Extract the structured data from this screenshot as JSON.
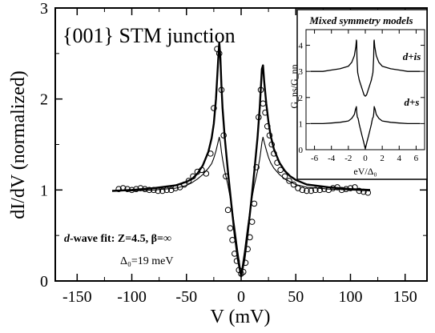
{
  "chart_data": [
    {
      "type": "line",
      "title": "{001} STM junction",
      "xlabel": "V (mV)",
      "ylabel": "dI/dV (normalized)",
      "xlim": [
        -170,
        170
      ],
      "ylim": [
        0,
        3
      ],
      "xticks": [
        -150,
        -100,
        -50,
        0,
        50,
        100,
        150
      ],
      "yticks": [
        0,
        1,
        2,
        3
      ],
      "grid": false,
      "annotation": {
        "fit_prefix": "d",
        "fit_suffix": "-wave fit: Z=4.5, β=∞",
        "gap": "Δ₀=19 meV"
      },
      "series": [
        {
          "style": "markers",
          "x": [
            -112,
            -108,
            -104,
            -100,
            -96,
            -92,
            -88,
            -84,
            -80,
            -76,
            -72,
            -68,
            -64,
            -60,
            -56,
            -52,
            -48,
            -44,
            -40,
            -36,
            -32,
            -28,
            -25,
            -22,
            -20,
            -18,
            -16,
            -14,
            -12,
            -10,
            -8,
            -6,
            -4,
            -2,
            0,
            2,
            4,
            6,
            8,
            10,
            12,
            14,
            16,
            18,
            20,
            22,
            24,
            26,
            28,
            30,
            33,
            36,
            40,
            44,
            48,
            52,
            56,
            60,
            64,
            68,
            72,
            76,
            80,
            84,
            88,
            92,
            96,
            100,
            104,
            108,
            112,
            116
          ],
          "y": [
            1.01,
            1.02,
            1.01,
            1.0,
            1.01,
            1.02,
            1.01,
            1.0,
            1.0,
            0.99,
            0.99,
            1.0,
            1.0,
            1.02,
            1.03,
            1.06,
            1.1,
            1.15,
            1.2,
            1.22,
            1.18,
            1.4,
            1.9,
            2.55,
            2.5,
            2.1,
            1.6,
            1.15,
            0.78,
            0.58,
            0.45,
            0.3,
            0.22,
            0.12,
            0.08,
            0.1,
            0.2,
            0.35,
            0.48,
            0.65,
            0.85,
            1.25,
            1.8,
            2.1,
            1.95,
            1.85,
            1.7,
            1.6,
            1.5,
            1.4,
            1.3,
            1.22,
            1.15,
            1.1,
            1.06,
            1.02,
            1.0,
            0.99,
            0.99,
            1.0,
            1.0,
            1.01,
            1.0,
            1.02,
            1.03,
            1.0,
            1.01,
            1.02,
            1.03,
            0.99,
            0.98,
            0.97
          ]
        },
        {
          "style": "thick",
          "x": [
            -118,
            -100,
            -80,
            -60,
            -50,
            -45,
            -40,
            -35,
            -30,
            -27,
            -25,
            -23,
            -21,
            -20,
            -19,
            -18,
            -17,
            -15,
            -12,
            -9,
            -6,
            -3,
            0,
            3,
            6,
            9,
            12,
            15,
            17,
            18,
            19,
            20,
            21,
            23,
            25,
            27,
            30,
            35,
            40,
            45,
            50,
            60,
            80,
            100,
            118
          ],
          "y": [
            0.99,
            1.0,
            1.02,
            1.05,
            1.09,
            1.12,
            1.18,
            1.27,
            1.42,
            1.57,
            1.73,
            2.0,
            2.42,
            2.62,
            2.45,
            2.15,
            1.9,
            1.58,
            1.2,
            0.85,
            0.52,
            0.24,
            0.05,
            0.24,
            0.52,
            0.85,
            1.2,
            1.58,
            1.9,
            2.12,
            2.33,
            2.37,
            2.2,
            1.95,
            1.75,
            1.6,
            1.45,
            1.3,
            1.21,
            1.15,
            1.11,
            1.06,
            1.03,
            1.01,
            1.0
          ]
        },
        {
          "style": "thin",
          "x": [
            -118,
            -100,
            -80,
            -60,
            -50,
            -45,
            -40,
            -35,
            -30,
            -27,
            -25,
            -23,
            -21,
            -20,
            -19,
            -18,
            -17,
            -15,
            -12,
            -9,
            -6,
            -3,
            0,
            3,
            6,
            9,
            12,
            15,
            17,
            18,
            19,
            20,
            21,
            23,
            25,
            27,
            30,
            35,
            40,
            45,
            50,
            60,
            80,
            100,
            118
          ],
          "y": [
            0.99,
            0.99,
            1.0,
            1.02,
            1.05,
            1.08,
            1.12,
            1.17,
            1.24,
            1.29,
            1.35,
            1.43,
            1.53,
            1.58,
            1.52,
            1.42,
            1.34,
            1.21,
            1.05,
            0.85,
            0.6,
            0.32,
            0.08,
            0.32,
            0.6,
            0.85,
            1.05,
            1.21,
            1.34,
            1.43,
            1.52,
            1.58,
            1.53,
            1.44,
            1.36,
            1.3,
            1.24,
            1.17,
            1.12,
            1.09,
            1.06,
            1.03,
            1.01,
            1.0,
            0.99
          ]
        }
      ]
    },
    {
      "type": "line",
      "title": "Mixed symmetry models",
      "xlabel": "eV/Δ₀",
      "ylabel": "G_ns/G_nn",
      "xlim": [
        -7,
        7
      ],
      "ylim": [
        0,
        4.6
      ],
      "xticks": [
        -6,
        -4,
        -2,
        0,
        2,
        4,
        6
      ],
      "yticks": [
        0,
        1,
        2,
        3,
        4
      ],
      "series": [
        {
          "name": "d+is",
          "x": [
            -6.5,
            -5,
            -4,
            -3,
            -2,
            -1.6,
            -1.3,
            -1.12,
            -1.05,
            -1.02,
            -0.98,
            -0.9,
            -0.7,
            -0.5,
            -0.3,
            -0.15,
            0,
            0.15,
            0.3,
            0.5,
            0.7,
            0.9,
            0.98,
            1.02,
            1.05,
            1.12,
            1.3,
            1.6,
            2,
            3,
            4,
            5,
            6.5
          ],
          "y": [
            3.0,
            3.0,
            3.05,
            3.1,
            3.2,
            3.35,
            3.6,
            3.95,
            4.2,
            4.15,
            3.5,
            2.95,
            2.65,
            2.45,
            2.25,
            2.1,
            2.05,
            2.1,
            2.25,
            2.45,
            2.65,
            2.95,
            3.5,
            4.15,
            4.2,
            3.95,
            3.6,
            3.35,
            3.2,
            3.1,
            3.05,
            3.0,
            3.0
          ]
        },
        {
          "name": "d+s",
          "x": [
            -6.5,
            -5,
            -4,
            -3,
            -2,
            -1.6,
            -1.3,
            -1.15,
            -1.05,
            -1.0,
            -0.95,
            -0.85,
            -0.7,
            -0.55,
            -0.4,
            -0.2,
            0,
            0.2,
            0.4,
            0.55,
            0.7,
            0.85,
            0.95,
            1.0,
            1.05,
            1.15,
            1.3,
            1.6,
            2,
            3,
            4,
            5,
            6.5
          ],
          "y": [
            1.0,
            1.0,
            1.02,
            1.05,
            1.1,
            1.2,
            1.35,
            1.55,
            1.65,
            1.4,
            1.25,
            1.2,
            0.95,
            0.75,
            0.55,
            0.3,
            0.03,
            0.3,
            0.55,
            0.75,
            0.95,
            1.2,
            1.25,
            1.4,
            1.65,
            1.55,
            1.35,
            1.2,
            1.1,
            1.05,
            1.02,
            1.0,
            1.0
          ]
        }
      ]
    }
  ]
}
